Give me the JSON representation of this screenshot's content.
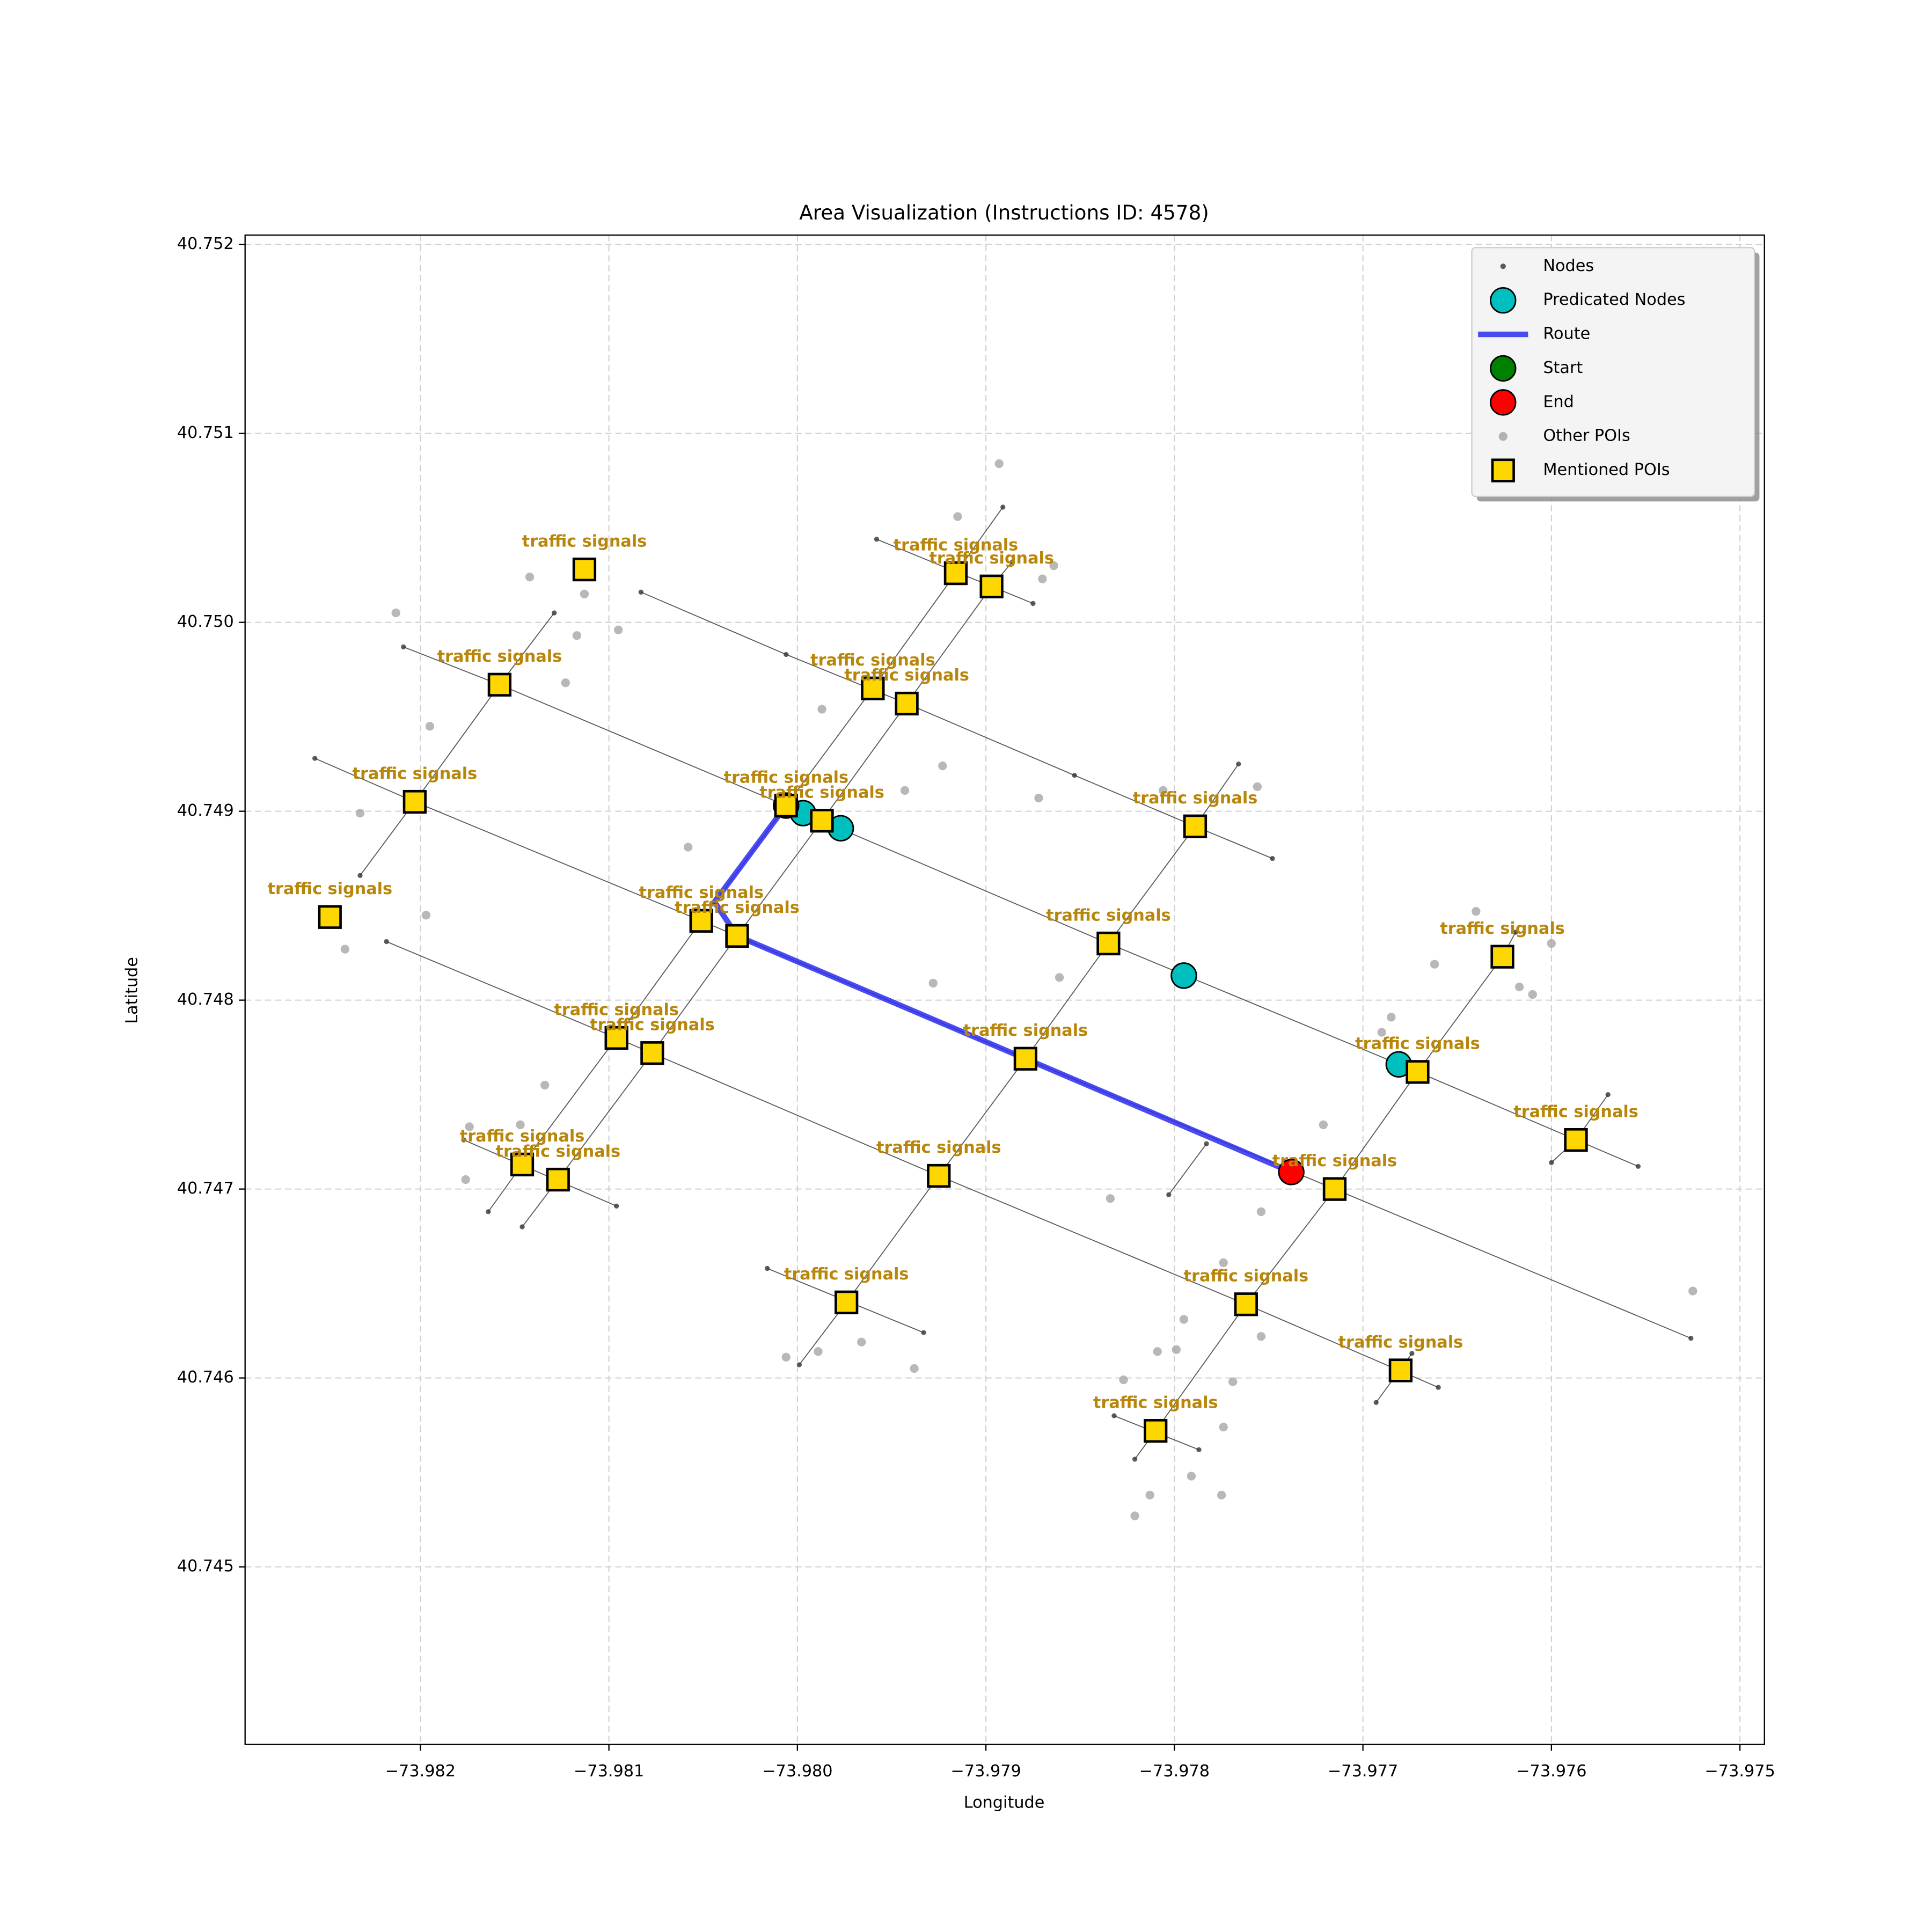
{
  "chart_data": {
    "type": "scatter",
    "title": "Area Visualization (Instructions ID: 4578)",
    "xlabel": "Longitude",
    "ylabel": "Latitude",
    "xlim": [
      -73.98293,
      -73.97487
    ],
    "ylim": [
      40.74406,
      40.75205
    ],
    "xticks": [
      {
        "value": -73.982,
        "label": "−73.982"
      },
      {
        "value": -73.981,
        "label": "−73.981"
      },
      {
        "value": -73.98,
        "label": "−73.980"
      },
      {
        "value": -73.979,
        "label": "−73.979"
      },
      {
        "value": -73.978,
        "label": "−73.978"
      },
      {
        "value": -73.977,
        "label": "−73.977"
      },
      {
        "value": -73.976,
        "label": "−73.976"
      },
      {
        "value": -73.975,
        "label": "−73.975"
      }
    ],
    "yticks": [
      40.745,
      40.746,
      40.747,
      40.748,
      40.749,
      {
        "value": 40.75,
        "label": "40.750"
      },
      40.751,
      40.752
    ],
    "grid": true,
    "legend": "upper right",
    "label_color": "#b8860b",
    "series": [
      {
        "name": "Nodes",
        "color": "#333333",
        "marker": "dot",
        "streets": [
          {
            "x": [
              -73.98083,
              -73.98006,
              -73.97942,
              -73.97853,
              -73.97789,
              -73.97748
            ],
            "y": [
              40.75016,
              40.74983,
              40.74957,
              40.74919,
              40.74892,
              40.74875
            ]
          },
          {
            "x": [
              -73.98209,
              -73.98158,
              -73.98006,
              -73.97835,
              -73.97671,
              -73.97554
            ],
            "y": [
              40.74987,
              40.74967,
              40.74903,
              40.7483,
              40.74762,
              40.74712
            ]
          },
          {
            "x": [
              -73.98256,
              -73.98203,
              -73.98051,
              -73.97879,
              -73.97715,
              -73.97526
            ],
            "y": [
              40.74928,
              40.74905,
              40.74842,
              40.74769,
              40.747,
              40.74621
            ]
          },
          {
            "x": [
              -73.98218,
              -73.98096,
              -73.97925,
              -73.97762,
              -73.9766
            ],
            "y": [
              40.74831,
              40.7478,
              40.74707,
              40.74639,
              40.74595
            ]
          },
          {
            "x": [
              -73.97958,
              -73.97875
            ],
            "y": [
              40.75044,
              40.7501
            ]
          },
          {
            "x": [
              -73.98016,
              -73.97933
            ],
            "y": [
              40.74658,
              40.74624
            ]
          },
          {
            "x": [
              -73.97832,
              -73.97787
            ],
            "y": [
              40.7458,
              40.74562
            ]
          },
          {
            "x": [
              -73.98177,
              -73.98096
            ],
            "y": [
              40.74726,
              40.74691
            ]
          },
          {
            "x": [
              -73.98232,
              -73.98203,
              -73.98158,
              -73.98129
            ],
            "y": [
              40.74866,
              40.74905,
              40.74967,
              40.75005
            ]
          },
          {
            "x": [
              -73.98164,
              -73.98146,
              -73.98096,
              -73.98051,
              -73.98006,
              -73.9796,
              -73.97916,
              -73.97891
            ],
            "y": [
              40.74688,
              40.74713,
              40.7478,
              40.74842,
              40.74903,
              40.74965,
              40.75026,
              40.75061
            ]
          },
          {
            "x": [
              -73.98146,
              -73.98127,
              -73.98077,
              -73.98032,
              -73.97987,
              -73.97942,
              -73.97897,
              -73.97886
            ],
            "y": [
              40.7468,
              40.74705,
              40.74772,
              40.74834,
              40.74895,
              40.74957,
              40.75019,
              40.75032
            ]
          },
          {
            "x": [
              -73.97999,
              -73.97974,
              -73.97925,
              -73.97879,
              -73.97835,
              -73.97789,
              -73.97766
            ],
            "y": [
              40.74607,
              40.7464,
              40.74707,
              40.74769,
              40.7483,
              40.74892,
              40.74925
            ]
          },
          {
            "x": [
              -73.97821,
              -73.9781,
              -73.97762,
              -73.97715,
              -73.97671,
              -73.97626,
              -73.97619
            ],
            "y": [
              40.74557,
              40.74572,
              40.74639,
              40.747,
              40.74762,
              40.74823,
              40.74836
            ]
          },
          {
            "x": [
              -73.97693,
              -73.97674
            ],
            "y": [
              40.74587,
              40.74613
            ]
          },
          {
            "x": [
              -73.97803,
              -73.97783
            ],
            "y": [
              40.74697,
              40.74724
            ]
          },
          {
            "x": [
              -73.976,
              -73.97587,
              -73.9757
            ],
            "y": [
              40.74714,
              40.74726,
              40.7475
            ]
          }
        ]
      },
      {
        "name": "Predicated Nodes",
        "color": "#00bfbf",
        "marker": "circle",
        "x": [
          -73.97997,
          -73.97977,
          -73.97795,
          -73.97681
        ],
        "y": [
          40.74899,
          40.74891,
          40.74813,
          40.74766
        ]
      },
      {
        "name": "Route",
        "color": "#2b2bf0",
        "marker": "line",
        "x": [
          -73.98006,
          -73.98044,
          -73.98032,
          -73.97879,
          -73.97738
        ],
        "y": [
          40.74903,
          40.74852,
          40.74834,
          40.74769,
          40.74709
        ]
      },
      {
        "name": "Start",
        "color": "#008000",
        "marker": "circle",
        "x": [
          -73.98006
        ],
        "y": [
          40.74903
        ]
      },
      {
        "name": "End",
        "color": "#ff0000",
        "marker": "circle",
        "x": [
          -73.97738
        ],
        "y": [
          40.74709
        ]
      },
      {
        "name": "Other POIs",
        "color": "#a0a0a0",
        "marker": "dot",
        "x": [
          -73.98213,
          -73.98142,
          -73.98113,
          -73.98095,
          -73.98117,
          -73.98123,
          -73.98195,
          -73.98232,
          -73.98197,
          -73.9824,
          -73.98058,
          -73.97987,
          -73.97943,
          -73.97923,
          -73.97915,
          -73.97893,
          -73.97864,
          -73.9787,
          -73.97872,
          -73.97806,
          -73.97756,
          -73.97861,
          -73.97928,
          -73.9764,
          -73.97662,
          -73.97617,
          -73.9761,
          -73.976,
          -73.97685,
          -73.9769,
          -73.97721,
          -73.97754,
          -73.97834,
          -73.97774,
          -73.97795,
          -73.97754,
          -73.97799,
          -73.97769,
          -73.97774,
          -73.97809,
          -73.97827,
          -73.97791,
          -73.97775,
          -73.97813,
          -73.97821,
          -73.98006,
          -73.97989,
          -73.97966,
          -73.97938,
          -73.98174,
          -73.98147,
          -73.98134,
          -73.98176,
          -73.97525
        ],
        "y": [
          40.75005,
          40.75024,
          40.75015,
          40.74996,
          40.74993,
          40.74968,
          40.74945,
          40.74899,
          40.74845,
          40.74827,
          40.74881,
          40.74954,
          40.74911,
          40.74924,
          40.75056,
          40.75084,
          40.7503,
          40.75023,
          40.74907,
          40.74911,
          40.74913,
          40.74812,
          40.74809,
          40.74847,
          40.74819,
          40.74807,
          40.74803,
          40.7483,
          40.74791,
          40.74783,
          40.74734,
          40.74688,
          40.74695,
          40.74661,
          40.74631,
          40.74622,
          40.74615,
          40.74598,
          40.74574,
          40.74614,
          40.74599,
          40.74548,
          40.74538,
          40.74538,
          40.74527,
          40.74611,
          40.74614,
          40.74619,
          40.74605,
          40.74733,
          40.74734,
          40.74755,
          40.74705,
          40.74646
        ]
      },
      {
        "name": "Mentioned POIs",
        "color": "#ffd700",
        "marker": "square",
        "x": [
          -73.98113,
          -73.97916,
          -73.97897,
          -73.98158,
          -73.9796,
          -73.97942,
          -73.98203,
          -73.98006,
          -73.97987,
          -73.97789,
          -73.98248,
          -73.98051,
          -73.98032,
          -73.97835,
          -73.97626,
          -73.98096,
          -73.98077,
          -73.97879,
          -73.97671,
          -73.97587,
          -73.98146,
          -73.98127,
          -73.97925,
          -73.97715,
          -73.97974,
          -73.97762,
          -73.9768,
          -73.9781
        ],
        "y": [
          40.75028,
          40.75026,
          40.75019,
          40.74967,
          40.74965,
          40.74957,
          40.74905,
          40.74903,
          40.74895,
          40.74892,
          40.74844,
          40.74842,
          40.74834,
          40.7483,
          40.74823,
          40.7478,
          40.74772,
          40.74769,
          40.74762,
          40.74726,
          40.74713,
          40.74705,
          40.74707,
          40.747,
          40.7464,
          40.74639,
          40.74604,
          40.74572
        ],
        "labels": [
          "traffic signals",
          "traffic signals",
          "traffic signals",
          "traffic signals",
          "traffic signals",
          "traffic signals",
          "traffic signals",
          "traffic signals",
          "traffic signals",
          "traffic signals",
          "traffic signals",
          "traffic signals",
          "traffic signals",
          "traffic signals",
          "traffic signals",
          "traffic signals",
          "traffic signals",
          "traffic signals",
          "traffic signals",
          "traffic signals",
          "traffic signals",
          "traffic signals",
          "traffic signals",
          "traffic signals",
          "traffic signals",
          "traffic signals",
          "traffic signals",
          "traffic signals"
        ]
      }
    ]
  }
}
